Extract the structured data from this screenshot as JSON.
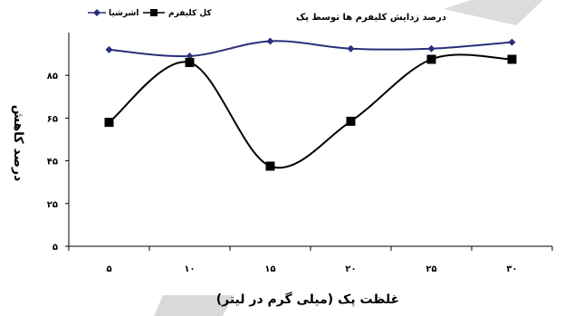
{
  "chart_data": {
    "type": "line",
    "title": "درصد زدایش کلیفرم ها توسط پک",
    "xlabel": "غلظت پک (میلی گرم در لیتر)",
    "ylabel": "درصد کاهش",
    "categories": [
      "۵",
      "۱۰",
      "۱۵",
      "۲۰",
      "۲۵",
      "۳۰"
    ],
    "x": [
      5,
      10,
      15,
      20,
      25,
      30
    ],
    "y_ticks": [
      5,
      25,
      45,
      65,
      85
    ],
    "y_tick_labels": [
      "۵",
      "۲۵",
      "۴۵",
      "۶۵",
      "۸۵"
    ],
    "ylim": [
      5,
      105
    ],
    "grid": false,
    "legend_position": "top-left",
    "series": [
      {
        "name": "اشرشیا",
        "values": [
          97,
          94,
          101,
          97.5,
          97.5,
          100.5
        ],
        "color": "#2b2f7a",
        "marker": "diamond"
      },
      {
        "name": "کل کلیفرم",
        "values": [
          63,
          91,
          42.5,
          63.5,
          92.5,
          92.5
        ],
        "color": "#000000",
        "marker": "square"
      }
    ]
  }
}
